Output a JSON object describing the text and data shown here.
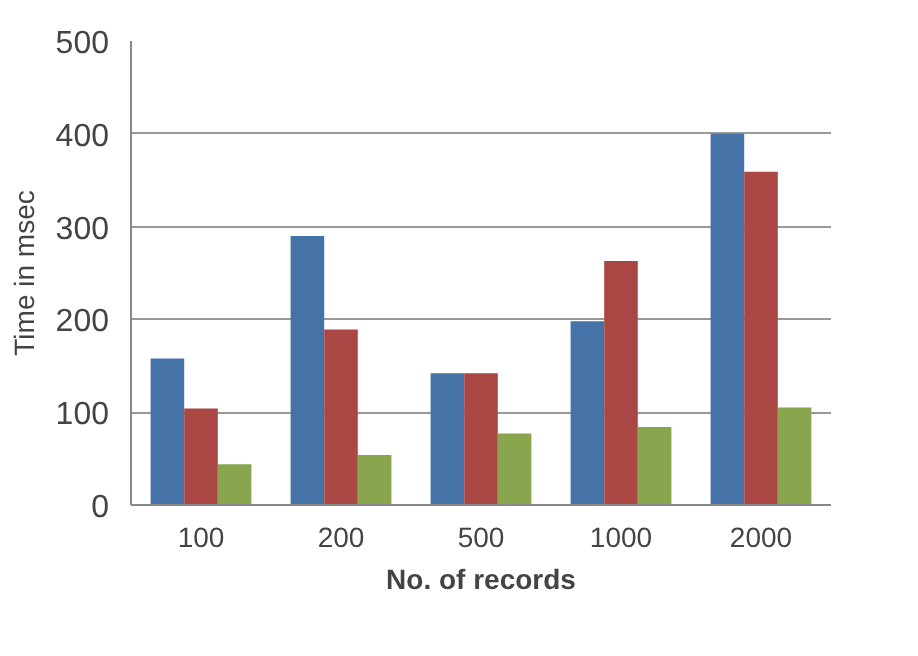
{
  "chart_data": {
    "type": "bar",
    "xlabel": "No. of records",
    "ylabel": "Time in msec",
    "categories": [
      "100",
      "200",
      "500",
      "1000",
      "2000"
    ],
    "series": [
      {
        "color": "#4572a7",
        "values": [
          158,
          290,
          142,
          198,
          400
        ]
      },
      {
        "color": "#aa4643",
        "values": [
          104,
          189,
          142,
          263,
          359
        ]
      },
      {
        "color": "#89a54e",
        "values": [
          44,
          54,
          77,
          84,
          105
        ]
      }
    ],
    "ylim": [
      0,
      500
    ],
    "yticks": [
      0,
      100,
      200,
      300,
      400,
      500
    ],
    "grid": "y"
  }
}
